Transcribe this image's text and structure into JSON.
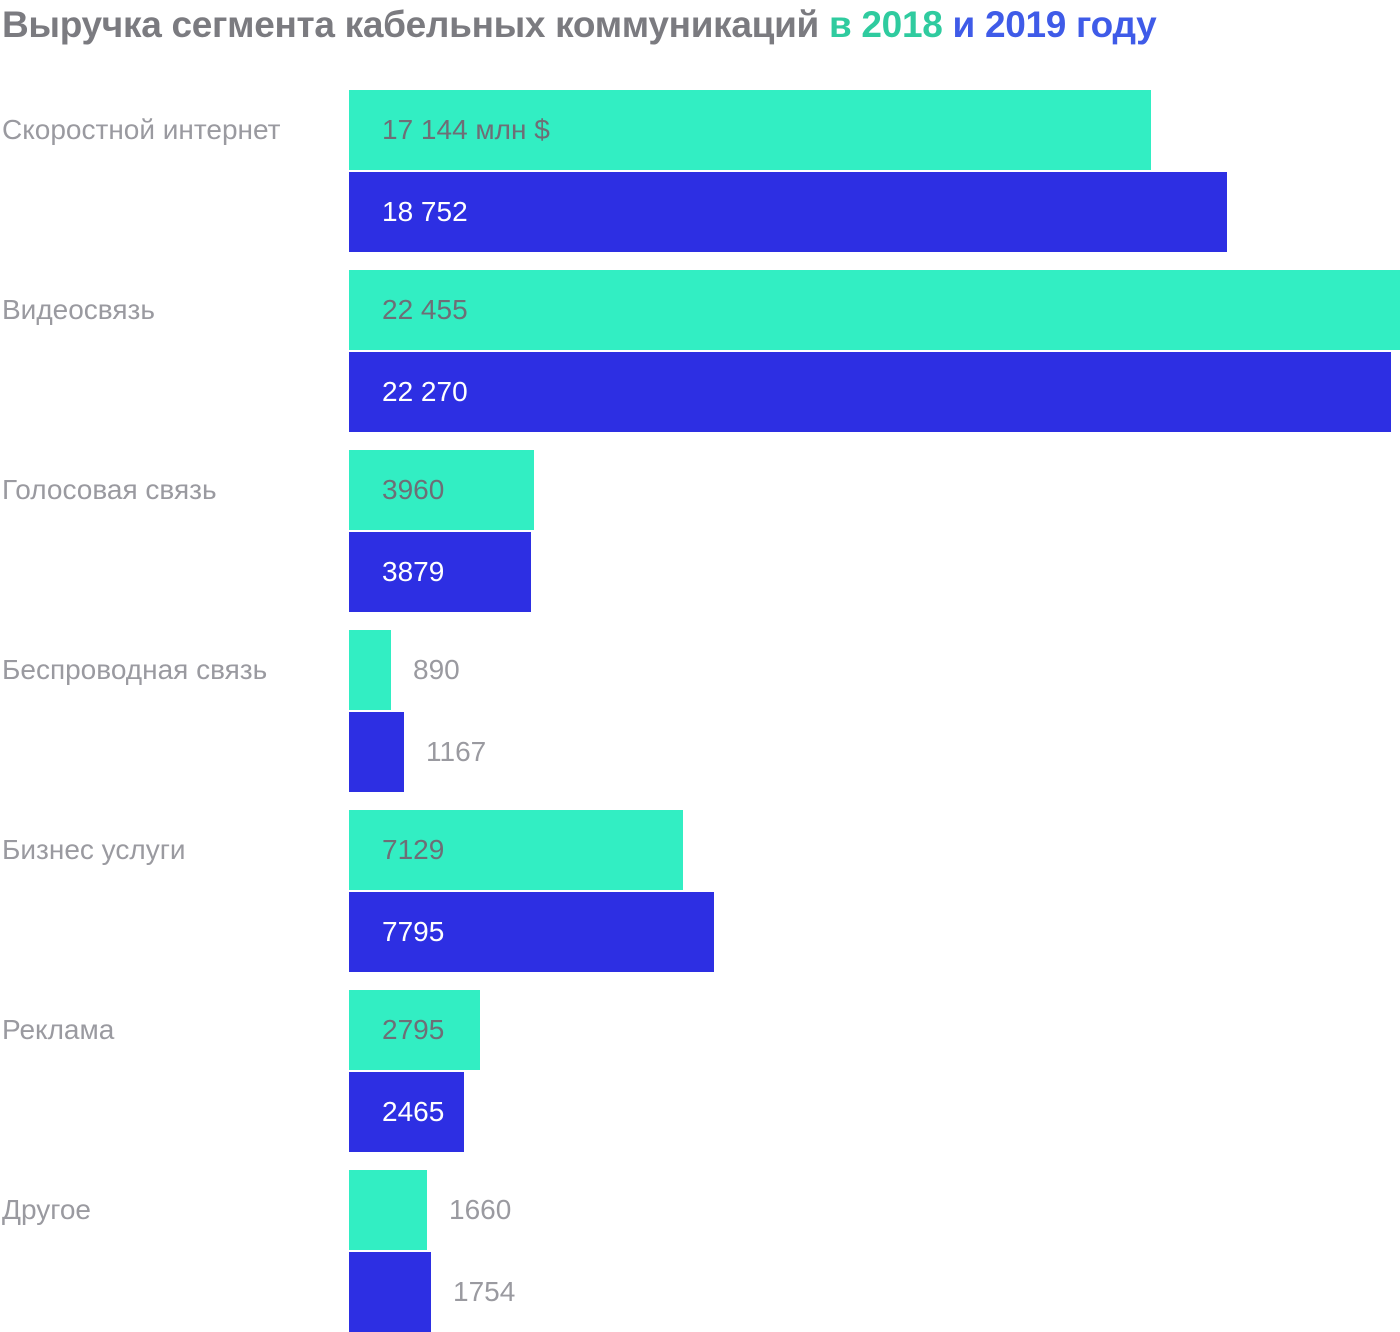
{
  "title": {
    "main": "Выручка сегмента кабельных коммуникаций",
    "highlight_2018": "в 2018",
    "highlight_2019_tail": "и 2019 году"
  },
  "colors": {
    "background": "#FFFFFF",
    "title_text": "#7B7B80",
    "title_2018_accent": "#2FCB9F",
    "title_2019_accent": "#3F5BE8",
    "bar_2018": "#32EEC3",
    "bar_2019": "#2D2FE3",
    "category_label": "#9A9AA0",
    "value_label_on_teal": "#6E6E76",
    "value_label_on_blue": "#FFFFFF",
    "value_label_outside": "#9A9AA0"
  },
  "chart_data": {
    "type": "bar",
    "orientation": "horizontal",
    "title": "Выручка сегмента кабельных коммуникаций в 2018 и 2019 году",
    "unit": "млн $",
    "grid": false,
    "legend_position": "in-title",
    "xlim": [
      0,
      22455
    ],
    "categories": [
      "Скоростной интернет",
      "Видеосвязь",
      "Голосовая связь",
      "Беспроводная связь",
      "Бизнес услуги",
      "Реклама",
      "Другое"
    ],
    "series": [
      {
        "name": "2018",
        "values": [
          17144,
          22455,
          3960,
          890,
          7129,
          2795,
          1660
        ],
        "labels": [
          "17 144 млн $",
          "22 455",
          "3960",
          "890",
          "7129",
          "2795",
          "1660"
        ]
      },
      {
        "name": "2019",
        "values": [
          18752,
          22270,
          3879,
          1167,
          7795,
          2465,
          1754
        ],
        "labels": [
          "18 752",
          "22 270",
          "3879",
          "1167",
          "7795",
          "2465",
          "1754"
        ]
      }
    ]
  }
}
